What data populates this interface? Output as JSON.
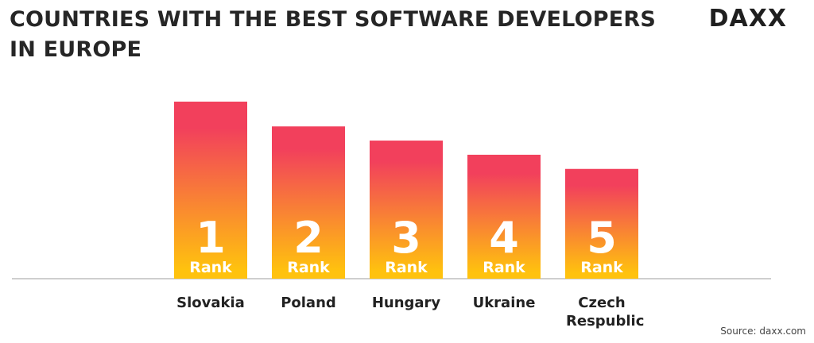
{
  "chart_data": {
    "type": "bar",
    "title": "COUNTRIES WITH THE BEST SOFTWARE DEVELOPERS IN EUROPE",
    "logo": "DAXX",
    "source": "Source: daxx.com",
    "categories": [
      "Slovakia",
      "Poland",
      "Hungary",
      "Ukraine",
      "Czech Respublic"
    ],
    "values": [
      100,
      86,
      78,
      70,
      62
    ],
    "ylim": [
      0,
      100
    ],
    "ranks": [
      1,
      2,
      3,
      4,
      5
    ],
    "rank_label": "Rank",
    "colors": [
      "#f2405c",
      "#ffc20e"
    ]
  }
}
